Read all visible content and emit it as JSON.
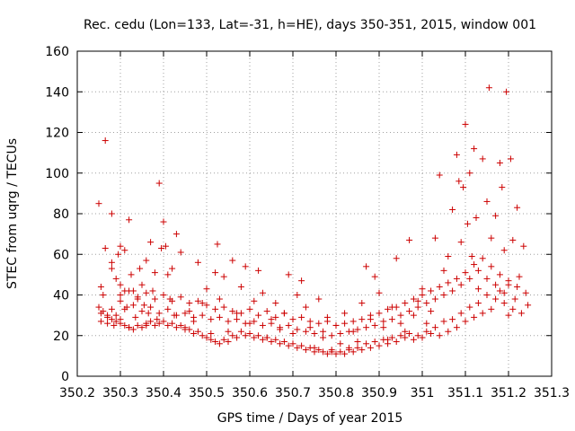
{
  "chart_data": {
    "type": "scatter",
    "title": "Rec. cedu (Lon=133, Lat=-31, h=HE), days 350-351, 2015, window 001",
    "xlabel": "GPS time / Days of year 2015",
    "ylabel": "STEC from uqrg / TECUs",
    "xlim": [
      350.2,
      351.3
    ],
    "ylim": [
      0,
      160
    ],
    "xticks": [
      "350.2",
      "350.3",
      "350.4",
      "350.5",
      "350.6",
      "350.7",
      "350.8",
      "350.9",
      "351",
      "351.1",
      "351.2",
      "351.3"
    ],
    "yticks": [
      "0",
      "20",
      "40",
      "60",
      "80",
      "100",
      "120",
      "140",
      "160"
    ],
    "grid": true,
    "marker": "+",
    "color": "#cc0000",
    "points": [
      [
        350.25,
        85
      ],
      [
        350.265,
        116
      ],
      [
        350.28,
        80
      ],
      [
        350.265,
        63
      ],
      [
        350.28,
        56
      ],
      [
        350.28,
        53
      ],
      [
        350.29,
        48
      ],
      [
        350.255,
        44
      ],
      [
        350.26,
        40
      ],
      [
        350.25,
        34
      ],
      [
        350.255,
        31
      ],
      [
        350.255,
        27
      ],
      [
        350.27,
        29
      ],
      [
        350.27,
        26
      ],
      [
        350.28,
        33
      ],
      [
        350.285,
        25
      ],
      [
        350.29,
        30
      ],
      [
        350.295,
        60
      ],
      [
        350.3,
        64
      ],
      [
        350.3,
        45
      ],
      [
        350.3,
        37
      ],
      [
        350.3,
        28
      ],
      [
        350.31,
        62
      ],
      [
        350.31,
        42
      ],
      [
        350.315,
        34
      ],
      [
        350.32,
        77
      ],
      [
        350.32,
        24
      ],
      [
        350.325,
        50
      ],
      [
        350.33,
        42
      ],
      [
        350.335,
        29
      ],
      [
        350.34,
        38
      ],
      [
        350.345,
        53
      ],
      [
        350.35,
        45
      ],
      [
        350.355,
        35
      ],
      [
        350.36,
        57
      ],
      [
        350.36,
        25
      ],
      [
        350.365,
        31
      ],
      [
        350.37,
        66
      ],
      [
        350.375,
        42
      ],
      [
        350.38,
        51
      ],
      [
        350.385,
        28
      ],
      [
        350.39,
        95
      ],
      [
        350.395,
        63
      ],
      [
        350.4,
        76
      ],
      [
        350.405,
        64
      ],
      [
        350.41,
        50
      ],
      [
        350.415,
        38
      ],
      [
        350.42,
        53
      ],
      [
        350.425,
        30
      ],
      [
        350.43,
        70
      ],
      [
        350.44,
        61
      ],
      [
        350.45,
        23
      ],
      [
        350.46,
        32
      ],
      [
        350.47,
        27
      ],
      [
        350.48,
        56
      ],
      [
        350.49,
        36
      ],
      [
        350.5,
        43
      ],
      [
        350.51,
        21
      ],
      [
        350.52,
        51
      ],
      [
        350.525,
        65
      ],
      [
        350.53,
        38
      ],
      [
        350.54,
        49
      ],
      [
        350.55,
        22
      ],
      [
        350.56,
        57
      ],
      [
        350.57,
        31
      ],
      [
        350.58,
        44
      ],
      [
        350.59,
        54
      ],
      [
        350.6,
        26
      ],
      [
        350.61,
        37
      ],
      [
        350.62,
        52
      ],
      [
        350.63,
        41
      ],
      [
        350.64,
        19
      ],
      [
        350.65,
        28
      ],
      [
        350.66,
        36
      ],
      [
        350.67,
        23
      ],
      [
        350.68,
        31
      ],
      [
        350.69,
        50
      ],
      [
        350.7,
        21
      ],
      [
        350.71,
        40
      ],
      [
        350.72,
        47
      ],
      [
        350.73,
        34
      ],
      [
        350.74,
        24
      ],
      [
        350.75,
        14
      ],
      [
        350.76,
        38
      ],
      [
        350.77,
        19
      ],
      [
        350.78,
        29
      ],
      [
        350.79,
        12
      ],
      [
        350.8,
        25
      ],
      [
        350.81,
        16
      ],
      [
        350.82,
        31
      ],
      [
        350.83,
        13
      ],
      [
        350.84,
        22
      ],
      [
        350.85,
        17
      ],
      [
        350.86,
        36
      ],
      [
        350.87,
        54
      ],
      [
        350.88,
        28
      ],
      [
        350.89,
        49
      ],
      [
        350.9,
        41
      ],
      [
        350.91,
        24
      ],
      [
        350.92,
        18
      ],
      [
        350.93,
        34
      ],
      [
        350.94,
        58
      ],
      [
        350.95,
        26
      ],
      [
        350.96,
        22
      ],
      [
        350.97,
        67
      ],
      [
        350.98,
        30
      ],
      [
        350.99,
        37
      ],
      [
        351.0,
        43
      ],
      [
        351.01,
        26
      ],
      [
        351.02,
        32
      ],
      [
        351.03,
        68
      ],
      [
        351.04,
        99
      ],
      [
        351.05,
        52
      ],
      [
        351.06,
        59
      ],
      [
        351.07,
        82
      ],
      [
        351.08,
        109
      ],
      [
        351.085,
        96
      ],
      [
        351.09,
        66
      ],
      [
        351.095,
        93
      ],
      [
        351.1,
        124
      ],
      [
        351.105,
        75
      ],
      [
        351.11,
        100
      ],
      [
        351.115,
        59
      ],
      [
        351.12,
        112
      ],
      [
        351.125,
        78
      ],
      [
        351.13,
        43
      ],
      [
        351.14,
        107
      ],
      [
        351.15,
        86
      ],
      [
        351.155,
        142
      ],
      [
        351.16,
        68
      ],
      [
        351.17,
        79
      ],
      [
        351.18,
        105
      ],
      [
        351.185,
        93
      ],
      [
        351.19,
        62
      ],
      [
        351.195,
        140
      ],
      [
        351.2,
        45
      ],
      [
        351.205,
        107
      ],
      [
        351.21,
        67
      ],
      [
        351.215,
        38
      ],
      [
        351.22,
        83
      ],
      [
        351.225,
        49
      ],
      [
        351.23,
        31
      ],
      [
        351.235,
        64
      ],
      [
        351.24,
        41
      ],
      [
        351.245,
        35
      ],
      [
        351.2,
        30
      ],
      [
        351.21,
        33
      ],
      [
        351.19,
        36
      ],
      [
        351.18,
        42
      ],
      [
        351.17,
        38
      ],
      [
        351.16,
        33
      ],
      [
        351.15,
        40
      ],
      [
        351.14,
        31
      ],
      [
        351.13,
        36
      ],
      [
        351.12,
        29
      ],
      [
        351.11,
        34
      ],
      [
        351.1,
        27
      ],
      [
        351.09,
        31
      ],
      [
        351.08,
        24
      ],
      [
        351.07,
        28
      ],
      [
        351.06,
        22
      ],
      [
        351.05,
        27
      ],
      [
        351.04,
        20
      ],
      [
        351.03,
        24
      ],
      [
        351.02,
        21
      ],
      [
        351.01,
        22
      ],
      [
        351.0,
        19
      ],
      [
        350.99,
        20
      ],
      [
        350.98,
        18
      ],
      [
        350.97,
        21
      ],
      [
        350.96,
        19
      ],
      [
        350.95,
        20
      ],
      [
        350.94,
        17
      ],
      [
        350.93,
        19
      ],
      [
        350.92,
        16
      ],
      [
        350.91,
        18
      ],
      [
        350.9,
        15
      ],
      [
        350.89,
        17
      ],
      [
        350.88,
        14
      ],
      [
        350.87,
        16
      ],
      [
        350.86,
        13
      ],
      [
        350.85,
        14
      ],
      [
        350.84,
        12
      ],
      [
        350.83,
        14
      ],
      [
        350.82,
        11
      ],
      [
        350.81,
        12
      ],
      [
        350.8,
        11
      ],
      [
        350.79,
        13
      ],
      [
        350.78,
        11
      ],
      [
        350.77,
        12
      ],
      [
        350.76,
        13
      ],
      [
        350.75,
        12
      ],
      [
        350.74,
        14
      ],
      [
        350.73,
        13
      ],
      [
        350.72,
        15
      ],
      [
        350.71,
        14
      ],
      [
        350.7,
        16
      ],
      [
        350.69,
        15
      ],
      [
        350.68,
        17
      ],
      [
        350.67,
        16
      ],
      [
        350.66,
        18
      ],
      [
        350.65,
        17
      ],
      [
        350.64,
        19
      ],
      [
        350.63,
        18
      ],
      [
        350.62,
        20
      ],
      [
        350.61,
        19
      ],
      [
        350.6,
        21
      ],
      [
        350.59,
        20
      ],
      [
        350.58,
        22
      ],
      [
        350.57,
        19
      ],
      [
        350.56,
        20
      ],
      [
        350.55,
        17
      ],
      [
        350.54,
        18
      ],
      [
        350.53,
        16
      ],
      [
        350.52,
        17
      ],
      [
        350.51,
        18
      ],
      [
        350.5,
        19
      ],
      [
        350.49,
        20
      ],
      [
        350.48,
        22
      ],
      [
        350.47,
        21
      ],
      [
        350.46,
        23
      ],
      [
        350.45,
        24
      ],
      [
        350.44,
        25
      ],
      [
        350.43,
        24
      ],
      [
        350.42,
        26
      ],
      [
        350.41,
        25
      ],
      [
        350.4,
        27
      ],
      [
        350.39,
        26
      ],
      [
        350.38,
        25
      ],
      [
        350.37,
        27
      ],
      [
        350.36,
        26
      ],
      [
        350.35,
        24
      ],
      [
        350.34,
        25
      ],
      [
        350.33,
        23
      ],
      [
        350.32,
        24
      ],
      [
        350.31,
        25
      ],
      [
        350.3,
        26
      ],
      [
        350.29,
        27
      ],
      [
        350.28,
        28
      ],
      [
        350.27,
        30
      ],
      [
        350.26,
        32
      ],
      [
        350.3,
        40
      ],
      [
        350.32,
        42
      ],
      [
        350.34,
        39
      ],
      [
        350.36,
        41
      ],
      [
        350.38,
        38
      ],
      [
        350.4,
        40
      ],
      [
        350.42,
        37
      ],
      [
        350.44,
        39
      ],
      [
        350.46,
        36
      ],
      [
        350.48,
        37
      ],
      [
        350.5,
        35
      ],
      [
        350.52,
        33
      ],
      [
        350.54,
        34
      ],
      [
        350.56,
        32
      ],
      [
        350.58,
        31
      ],
      [
        350.6,
        33
      ],
      [
        350.62,
        30
      ],
      [
        350.64,
        32
      ],
      [
        350.66,
        29
      ],
      [
        350.68,
        31
      ],
      [
        350.7,
        28
      ],
      [
        350.72,
        29
      ],
      [
        350.74,
        27
      ],
      [
        350.76,
        26
      ],
      [
        350.78,
        27
      ],
      [
        350.8,
        25
      ],
      [
        350.82,
        26
      ],
      [
        350.84,
        27
      ],
      [
        350.86,
        28
      ],
      [
        350.88,
        30
      ],
      [
        350.9,
        31
      ],
      [
        350.92,
        33
      ],
      [
        350.94,
        34
      ],
      [
        350.96,
        36
      ],
      [
        350.98,
        38
      ],
      [
        351.0,
        40
      ],
      [
        351.02,
        42
      ],
      [
        351.04,
        44
      ],
      [
        351.06,
        46
      ],
      [
        351.08,
        48
      ],
      [
        351.1,
        51
      ],
      [
        351.12,
        55
      ],
      [
        351.14,
        58
      ],
      [
        351.16,
        54
      ],
      [
        351.18,
        50
      ],
      [
        351.2,
        47
      ],
      [
        351.22,
        44
      ],
      [
        350.31,
        33
      ],
      [
        350.33,
        35
      ],
      [
        350.35,
        32
      ],
      [
        350.37,
        34
      ],
      [
        350.39,
        31
      ],
      [
        350.41,
        33
      ],
      [
        350.43,
        30
      ],
      [
        350.45,
        31
      ],
      [
        350.47,
        29
      ],
      [
        350.49,
        30
      ],
      [
        350.51,
        28
      ],
      [
        350.53,
        29
      ],
      [
        350.55,
        27
      ],
      [
        350.57,
        28
      ],
      [
        350.59,
        26
      ],
      [
        350.61,
        27
      ],
      [
        350.63,
        25
      ],
      [
        350.65,
        26
      ],
      [
        350.67,
        24
      ],
      [
        350.69,
        25
      ],
      [
        350.71,
        23
      ],
      [
        350.73,
        22
      ],
      [
        350.75,
        21
      ],
      [
        350.77,
        22
      ],
      [
        350.79,
        20
      ],
      [
        350.81,
        21
      ],
      [
        350.83,
        22
      ],
      [
        350.85,
        23
      ],
      [
        350.87,
        24
      ],
      [
        350.89,
        25
      ],
      [
        350.91,
        27
      ],
      [
        350.93,
        28
      ],
      [
        350.95,
        30
      ],
      [
        350.97,
        32
      ],
      [
        350.99,
        34
      ],
      [
        351.01,
        36
      ],
      [
        351.03,
        38
      ],
      [
        351.05,
        40
      ],
      [
        351.07,
        42
      ],
      [
        351.09,
        45
      ],
      [
        351.11,
        48
      ],
      [
        351.13,
        52
      ],
      [
        351.15,
        48
      ],
      [
        351.17,
        45
      ],
      [
        351.19,
        41
      ]
    ]
  }
}
